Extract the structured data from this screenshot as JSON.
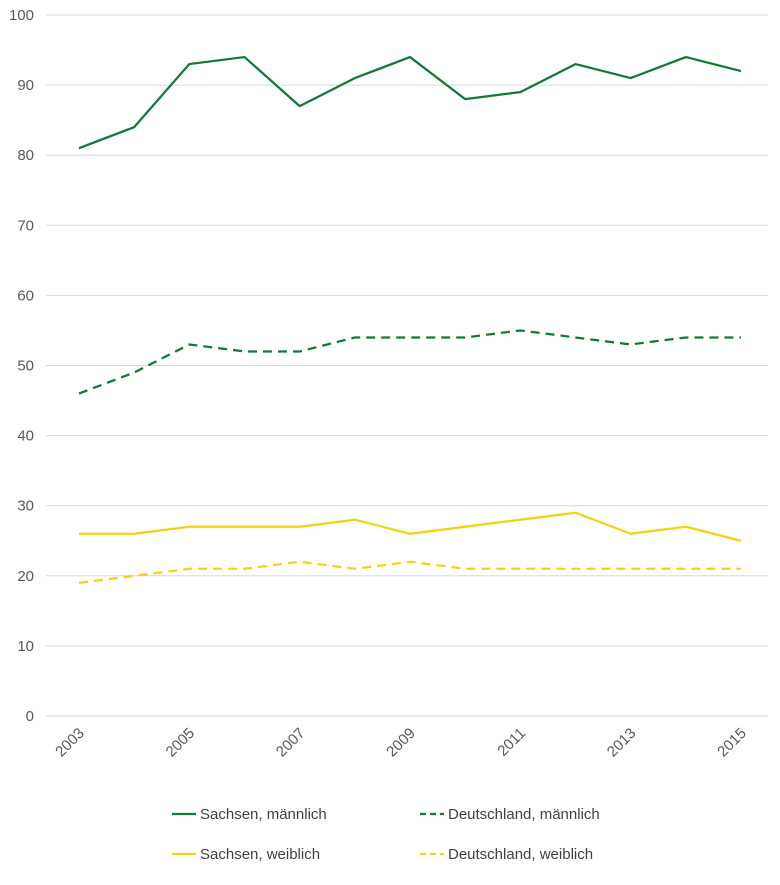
{
  "chart_data": {
    "type": "line",
    "title": "",
    "xlabel": "",
    "ylabel": "",
    "x": [
      2003,
      2004,
      2005,
      2006,
      2007,
      2008,
      2009,
      2010,
      2011,
      2012,
      2013,
      2014,
      2015
    ],
    "x_tick_labels": [
      "2003",
      "2005",
      "2007",
      "2009",
      "2011",
      "2013",
      "2015"
    ],
    "ylim": [
      0,
      100
    ],
    "y_tick_labels": [
      "0",
      "10",
      "20",
      "30",
      "40",
      "50",
      "60",
      "70",
      "80",
      "90",
      "100"
    ],
    "grid": true,
    "legend_placement": "bottom",
    "series": [
      {
        "name": "Sachsen, männlich",
        "color": "#0e7a34",
        "dash": "solid",
        "values": [
          81,
          84,
          93,
          94,
          87,
          91,
          94,
          88,
          89,
          93,
          91,
          94,
          92
        ]
      },
      {
        "name": "Deutschland, männlich",
        "color": "#0e7a34",
        "dash": "dashed",
        "values": [
          46,
          49,
          53,
          52,
          52,
          54,
          54,
          54,
          55,
          54,
          53,
          54,
          54
        ]
      },
      {
        "name": "Sachsen, weiblich",
        "color": "#f5d211",
        "dash": "solid",
        "values": [
          26,
          26,
          27,
          27,
          27,
          28,
          26,
          27,
          28,
          29,
          26,
          27,
          25
        ]
      },
      {
        "name": "Deutschland, weiblich",
        "color": "#f5d211",
        "dash": "dashed",
        "values": [
          19,
          20,
          21,
          21,
          22,
          21,
          22,
          21,
          21,
          21,
          21,
          21,
          21
        ]
      }
    ]
  }
}
